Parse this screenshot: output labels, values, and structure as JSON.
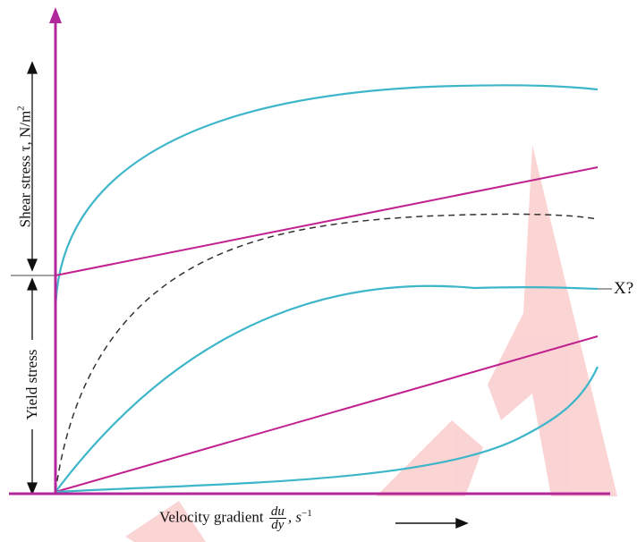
{
  "axes": {
    "x_label_prefix": "Velocity gradient",
    "x_frac_num": "du",
    "x_frac_den": "dy",
    "x_unit_base": ", s",
    "x_unit_exp": "−1",
    "y_label_main": "Shear stress τ, N/m",
    "y_label_exp": "2",
    "yield_label": "Yield stress"
  },
  "curve_label": "X?",
  "colors": {
    "axis": "#b2279a",
    "cyan_curve": "#3eb6c9",
    "magenta_line": "#c1208f",
    "dashed_curve": "#333333",
    "watermark": "#f7b1b1",
    "text": "#111111"
  }
}
